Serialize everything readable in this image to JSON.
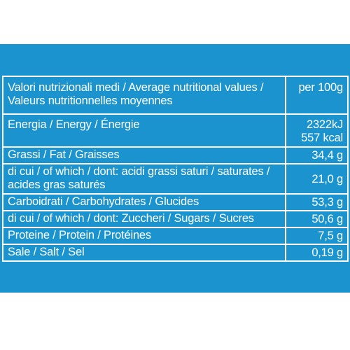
{
  "table": {
    "header": {
      "label_line1": "Valori nutrizionali medi / Average nutritional values /",
      "label_line2": "Valeurs nutritionnelles moyennes",
      "value": "per 100g"
    },
    "energy": {
      "label": "Energia / Energy / Énergie",
      "value_kj": "2322kJ",
      "value_kcal": "557 kcal"
    },
    "fat": {
      "label": "Grassi / Fat / Graisses",
      "value": "34,4 g"
    },
    "saturates": {
      "label_line1": "di cui / of which / dont: acidi grassi saturi / saturates /",
      "label_line2": "acides gras saturés",
      "value": "21,0 g"
    },
    "carbohydrates": {
      "label": "Carboidrati / Carbohydrates / Glucides",
      "value": "53,3 g"
    },
    "sugars": {
      "label": "di cui / of which / dont: Zuccheri / Sugars / Sucres",
      "value": "50,6 g"
    },
    "protein": {
      "label": "Proteine / Protein / Protéines",
      "value": "7,5 g"
    },
    "salt": {
      "label": "Sale / Salt / Sel",
      "value": "0,19 g"
    }
  },
  "colors": {
    "panel_blue": "#1b93cf",
    "text": "#ffffff",
    "page_background": "#ffffff"
  }
}
